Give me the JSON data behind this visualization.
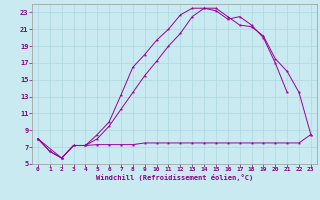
{
  "background_color": "#c8eaf0",
  "grid_color": "#b0d8e0",
  "line_color": "#990099",
  "xlabel": "Windchill (Refroidissement éolien,°C)",
  "xlabel_color": "#880088",
  "tick_color": "#880088",
  "xlim": [
    -0.5,
    23.5
  ],
  "ylim": [
    5.0,
    24.0
  ],
  "xticks": [
    0,
    1,
    2,
    3,
    4,
    5,
    6,
    7,
    8,
    9,
    10,
    11,
    12,
    13,
    14,
    15,
    16,
    17,
    18,
    19,
    20,
    21,
    22,
    23
  ],
  "yticks": [
    5,
    7,
    9,
    11,
    13,
    15,
    17,
    19,
    21,
    23
  ],
  "curve1_x": [
    0,
    1,
    2,
    3,
    4,
    5,
    6,
    7,
    8,
    9,
    10,
    11,
    12,
    13,
    14,
    15,
    16,
    17,
    18,
    19,
    20,
    21,
    22,
    23
  ],
  "curve1_y": [
    8.0,
    6.5,
    5.7,
    7.2,
    7.2,
    7.3,
    7.3,
    7.3,
    7.3,
    7.5,
    7.5,
    7.5,
    7.5,
    7.5,
    7.5,
    7.5,
    7.5,
    7.5,
    7.5,
    7.5,
    7.5,
    7.5,
    7.5,
    8.5
  ],
  "curve2_x": [
    0,
    1,
    2,
    3,
    4,
    5,
    6,
    7,
    8,
    9,
    10,
    11,
    12,
    13,
    14,
    15,
    16,
    17,
    18,
    19,
    20,
    21
  ],
  "curve2_y": [
    8.0,
    6.5,
    5.7,
    7.2,
    7.2,
    8.5,
    10.0,
    13.2,
    16.5,
    18.0,
    19.7,
    21.0,
    22.7,
    23.5,
    23.5,
    23.2,
    22.2,
    22.5,
    21.5,
    20.0,
    17.0,
    13.5
  ],
  "curve3_x": [
    0,
    2,
    3,
    4,
    5,
    6,
    7,
    8,
    9,
    10,
    11,
    12,
    13,
    14,
    15,
    16,
    17,
    18,
    19,
    20,
    21,
    22,
    23
  ],
  "curve3_y": [
    8.0,
    5.7,
    7.2,
    7.2,
    8.0,
    9.5,
    11.5,
    13.5,
    15.5,
    17.2,
    19.0,
    20.5,
    22.5,
    23.5,
    23.5,
    22.5,
    21.5,
    21.3,
    20.2,
    17.5,
    16.0,
    13.5,
    8.5
  ]
}
